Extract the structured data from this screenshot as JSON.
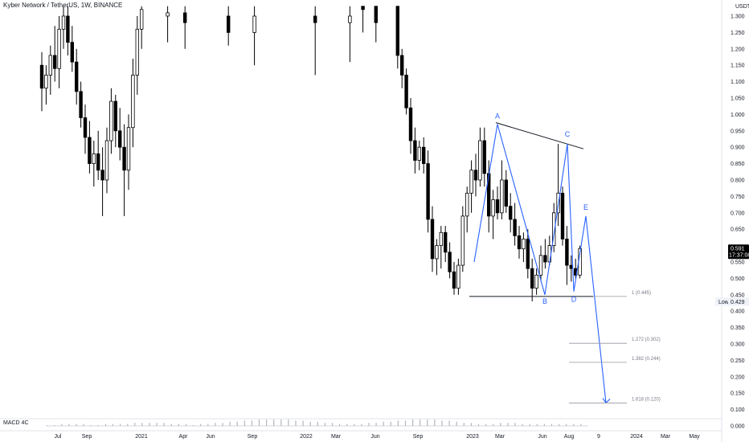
{
  "header": {
    "symbol_title": "Kyber Network / TetherUS, 1W, BINANCE"
  },
  "price_axis": {
    "currency": "USDT",
    "ticks": [
      1.3,
      1.25,
      1.2,
      1.15,
      1.1,
      1.05,
      1.0,
      0.95,
      0.9,
      0.85,
      0.8,
      0.75,
      0.7,
      0.65,
      0.55,
      0.5,
      0.45,
      0.4,
      0.35,
      0.3,
      0.25,
      0.2,
      0.15,
      0.1
    ],
    "tick_labels": [
      "1.300",
      "1.250",
      "1.200",
      "1.150",
      "1.100",
      "1.050",
      "1.000",
      "0.950",
      "0.900",
      "0.850",
      "0.800",
      "0.750",
      "0.700",
      "0.650",
      "0.550",
      "0.500",
      "0.450",
      "0.400",
      "0.350",
      "0.300",
      "0.250",
      "0.200",
      "0.150",
      "0.100"
    ],
    "macd_tick": "0.000",
    "last_price": "0.591",
    "countdown": "17:37:08",
    "low_label": "Low",
    "low_value": "0.429",
    "range": [
      0.08,
      1.33
    ]
  },
  "time_axis": {
    "labels": [
      "Jul",
      "Sep",
      "2021",
      "Apr",
      "Jun",
      "Sep",
      "2022",
      "Mar",
      "Jun",
      "Sep",
      "2023",
      "Mar",
      "Jun",
      "Aug",
      "9",
      "2024",
      "Mar",
      "May"
    ]
  },
  "indicator": {
    "label": "MACD 4C"
  },
  "chart_data": {
    "type": "candlestick",
    "symbol": "Kyber Network / TetherUS",
    "interval": "1W",
    "exchange": "BINANCE",
    "visible_price_range": [
      0.08,
      1.33
    ],
    "annotated_candles": [
      {
        "week": 1,
        "open": 1.15,
        "high": 1.19,
        "low": 1.01,
        "close": 1.08
      },
      {
        "week": 2,
        "open": 1.08,
        "high": 1.15,
        "low": 1.03,
        "close": 1.12
      },
      {
        "week": 3,
        "open": 1.12,
        "high": 1.21,
        "low": 1.06,
        "close": 1.18
      },
      {
        "week": 4,
        "open": 1.18,
        "high": 1.27,
        "low": 1.1,
        "close": 1.14
      },
      {
        "week": 5,
        "open": 1.14,
        "high": 1.3,
        "low": 1.08,
        "close": 1.26
      },
      {
        "week": 6,
        "open": 1.26,
        "high": 1.33,
        "low": 1.2,
        "close": 1.3
      },
      {
        "week": 7,
        "open": 1.3,
        "high": 1.33,
        "low": 1.18,
        "close": 1.22
      },
      {
        "week": 8,
        "open": 1.22,
        "high": 1.27,
        "low": 1.13,
        "close": 1.16
      },
      {
        "week": 9,
        "open": 1.16,
        "high": 1.2,
        "low": 1.03,
        "close": 1.07
      },
      {
        "week": 10,
        "open": 1.07,
        "high": 1.1,
        "low": 0.96,
        "close": 0.99
      },
      {
        "week": 11,
        "open": 0.99,
        "high": 1.03,
        "low": 0.88,
        "close": 0.93
      },
      {
        "week": 12,
        "open": 0.93,
        "high": 0.98,
        "low": 0.82,
        "close": 0.85
      },
      {
        "week": 13,
        "open": 0.85,
        "high": 0.92,
        "low": 0.78,
        "close": 0.88
      },
      {
        "week": 14,
        "open": 0.88,
        "high": 0.95,
        "low": 0.8,
        "close": 0.83
      },
      {
        "week": 15,
        "open": 0.83,
        "high": 0.9,
        "low": 0.69,
        "close": 0.8
      },
      {
        "week": 16,
        "open": 0.8,
        "high": 0.96,
        "low": 0.76,
        "close": 0.92
      },
      {
        "week": 17,
        "open": 0.92,
        "high": 1.08,
        "low": 0.88,
        "close": 1.04
      },
      {
        "week": 18,
        "open": 1.04,
        "high": 1.06,
        "low": 0.9,
        "close": 0.95
      },
      {
        "week": 19,
        "open": 0.95,
        "high": 1.02,
        "low": 0.86,
        "close": 0.9
      },
      {
        "week": 20,
        "open": 0.9,
        "high": 0.97,
        "low": 0.69,
        "close": 0.83
      },
      {
        "week": 21,
        "open": 0.83,
        "high": 1.0,
        "low": 0.77,
        "close": 0.96
      },
      {
        "week": 22,
        "open": 0.96,
        "high": 1.17,
        "low": 0.9,
        "close": 1.12
      },
      {
        "week": 23,
        "open": 1.12,
        "high": 1.3,
        "low": 1.06,
        "close": 1.26
      },
      {
        "week": 24,
        "open": 1.26,
        "high": 1.33,
        "low": 1.2,
        "close": 1.32
      },
      {
        "week": 30,
        "open": 1.3,
        "high": 1.33,
        "low": 1.22,
        "close": 1.31
      },
      {
        "week": 34,
        "open": 1.31,
        "high": 1.33,
        "low": 1.2,
        "close": 1.28
      },
      {
        "week": 44,
        "open": 1.3,
        "high": 1.33,
        "low": 1.21,
        "close": 1.25
      },
      {
        "week": 50,
        "open": 1.25,
        "high": 1.33,
        "low": 1.15,
        "close": 1.3
      },
      {
        "week": 64,
        "open": 1.3,
        "high": 1.33,
        "low": 1.12,
        "close": 1.28
      },
      {
        "week": 72,
        "open": 1.28,
        "high": 1.33,
        "low": 1.16,
        "close": 1.3
      },
      {
        "week": 75,
        "open": 1.33,
        "high": 1.33,
        "low": 1.25,
        "close": 1.32
      },
      {
        "week": 78,
        "open": 1.33,
        "high": 1.33,
        "low": 1.22,
        "close": 1.28
      },
      {
        "week": 83,
        "open": 1.33,
        "high": 1.33,
        "low": 1.14,
        "close": 1.18
      },
      {
        "week": 84,
        "open": 1.18,
        "high": 1.2,
        "low": 1.08,
        "close": 1.12
      },
      {
        "week": 85,
        "open": 1.12,
        "high": 1.14,
        "low": 1.0,
        "close": 1.02
      },
      {
        "week": 86,
        "open": 1.02,
        "high": 1.05,
        "low": 0.88,
        "close": 0.92
      },
      {
        "week": 87,
        "open": 0.92,
        "high": 0.96,
        "low": 0.82,
        "close": 0.86
      },
      {
        "week": 88,
        "open": 0.86,
        "high": 0.92,
        "low": 0.83,
        "close": 0.9
      },
      {
        "week": 89,
        "open": 0.9,
        "high": 0.93,
        "low": 0.82,
        "close": 0.85
      },
      {
        "week": 90,
        "open": 0.85,
        "high": 0.89,
        "low": 0.64,
        "close": 0.68
      },
      {
        "week": 91,
        "open": 0.68,
        "high": 0.72,
        "low": 0.52,
        "close": 0.56
      },
      {
        "week": 92,
        "open": 0.56,
        "high": 0.62,
        "low": 0.51,
        "close": 0.6
      },
      {
        "week": 93,
        "open": 0.6,
        "high": 0.66,
        "low": 0.53,
        "close": 0.64
      },
      {
        "week": 94,
        "open": 0.64,
        "high": 0.66,
        "low": 0.55,
        "close": 0.58
      },
      {
        "week": 95,
        "open": 0.58,
        "high": 0.61,
        "low": 0.5,
        "close": 0.52
      },
      {
        "week": 96,
        "open": 0.52,
        "high": 0.55,
        "low": 0.45,
        "close": 0.47
      },
      {
        "week": 97,
        "open": 0.47,
        "high": 0.56,
        "low": 0.45,
        "close": 0.54
      },
      {
        "week": 98,
        "open": 0.54,
        "high": 0.72,
        "low": 0.52,
        "close": 0.69
      },
      {
        "week": 99,
        "open": 0.69,
        "high": 0.78,
        "low": 0.64,
        "close": 0.76
      },
      {
        "week": 100,
        "open": 0.76,
        "high": 0.86,
        "low": 0.7,
        "close": 0.83
      },
      {
        "week": 101,
        "open": 0.83,
        "high": 0.88,
        "low": 0.75,
        "close": 0.8
      },
      {
        "week": 102,
        "open": 0.8,
        "high": 0.96,
        "low": 0.78,
        "close": 0.92
      },
      {
        "week": 103,
        "open": 0.92,
        "high": 0.96,
        "low": 0.78,
        "close": 0.82
      },
      {
        "week": 104,
        "open": 0.82,
        "high": 0.86,
        "low": 0.64,
        "close": 0.69
      },
      {
        "week": 105,
        "open": 0.69,
        "high": 0.77,
        "low": 0.62,
        "close": 0.74
      },
      {
        "week": 106,
        "open": 0.74,
        "high": 0.78,
        "low": 0.68,
        "close": 0.7
      },
      {
        "week": 107,
        "open": 0.7,
        "high": 0.86,
        "low": 0.68,
        "close": 0.8
      },
      {
        "week": 108,
        "open": 0.8,
        "high": 0.83,
        "low": 0.7,
        "close": 0.72
      },
      {
        "week": 109,
        "open": 0.72,
        "high": 0.76,
        "low": 0.64,
        "close": 0.68
      },
      {
        "week": 110,
        "open": 0.68,
        "high": 0.73,
        "low": 0.6,
        "close": 0.63
      },
      {
        "week": 111,
        "open": 0.63,
        "high": 0.66,
        "low": 0.56,
        "close": 0.59
      },
      {
        "week": 112,
        "open": 0.59,
        "high": 0.64,
        "low": 0.55,
        "close": 0.62
      },
      {
        "week": 113,
        "open": 0.62,
        "high": 0.65,
        "low": 0.5,
        "close": 0.53
      },
      {
        "week": 114,
        "open": 0.53,
        "high": 0.56,
        "low": 0.43,
        "close": 0.47
      },
      {
        "week": 115,
        "open": 0.47,
        "high": 0.53,
        "low": 0.45,
        "close": 0.51
      },
      {
        "week": 116,
        "open": 0.51,
        "high": 0.6,
        "low": 0.49,
        "close": 0.57
      },
      {
        "week": 117,
        "open": 0.57,
        "high": 0.62,
        "low": 0.53,
        "close": 0.55
      },
      {
        "week": 118,
        "open": 0.55,
        "high": 0.63,
        "low": 0.54,
        "close": 0.6
      },
      {
        "week": 119,
        "open": 0.6,
        "high": 0.73,
        "low": 0.58,
        "close": 0.7
      },
      {
        "week": 120,
        "open": 0.7,
        "high": 0.91,
        "low": 0.66,
        "close": 0.76
      },
      {
        "week": 121,
        "open": 0.76,
        "high": 0.78,
        "low": 0.6,
        "close": 0.62
      },
      {
        "week": 122,
        "open": 0.62,
        "high": 0.66,
        "low": 0.48,
        "close": 0.54
      },
      {
        "week": 123,
        "open": 0.54,
        "high": 0.57,
        "low": 0.49,
        "close": 0.53
      },
      {
        "week": 124,
        "open": 0.53,
        "high": 0.56,
        "low": 0.5,
        "close": 0.51
      },
      {
        "week": 125,
        "open": 0.51,
        "high": 0.6,
        "low": 0.5,
        "close": 0.591
      }
    ],
    "pattern_points": [
      {
        "label": "A",
        "price": 0.97
      },
      {
        "label": "B",
        "price": 0.45
      },
      {
        "label": "C",
        "price": 0.91
      },
      {
        "label": "D",
        "price": 0.46
      },
      {
        "label": "E",
        "price": 0.69
      }
    ],
    "projection_target": 0.12,
    "trendline_upper": [
      0.97,
      0.9
    ],
    "support_line": 0.445,
    "fibonacci_levels": [
      {
        "ratio": "1",
        "price": 0.445,
        "label": "1 (0.445)"
      },
      {
        "ratio": "1.272",
        "price": 0.302,
        "label": "1.272 (0.302)"
      },
      {
        "ratio": "1.382",
        "price": 0.244,
        "label": "1.382 (0.244)"
      },
      {
        "ratio": "1.618",
        "price": 0.12,
        "label": "1.618 (0.120)"
      }
    ]
  },
  "colors": {
    "up_candle": "#ffffff",
    "down_candle": "#000000",
    "candle_border": "#000000",
    "pattern": "#2962ff",
    "trendline": "#131722",
    "fib_line": "#9598a1",
    "price_badge": "#000000"
  }
}
